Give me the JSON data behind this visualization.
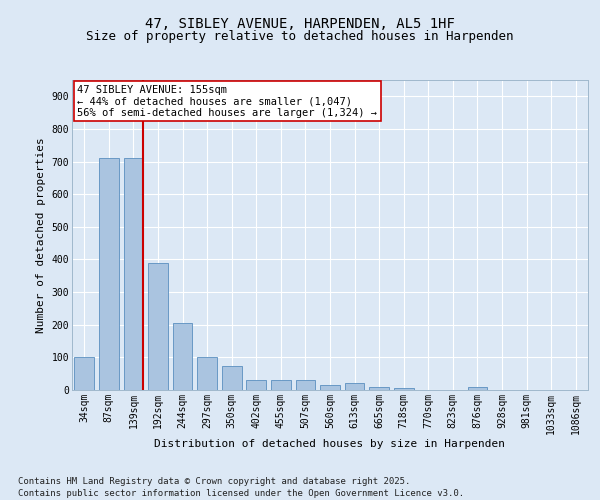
{
  "title": "47, SIBLEY AVENUE, HARPENDEN, AL5 1HF",
  "subtitle": "Size of property relative to detached houses in Harpenden",
  "xlabel": "Distribution of detached houses by size in Harpenden",
  "ylabel": "Number of detached properties",
  "categories": [
    "34sqm",
    "87sqm",
    "139sqm",
    "192sqm",
    "244sqm",
    "297sqm",
    "350sqm",
    "402sqm",
    "455sqm",
    "507sqm",
    "560sqm",
    "613sqm",
    "665sqm",
    "718sqm",
    "770sqm",
    "823sqm",
    "876sqm",
    "928sqm",
    "981sqm",
    "1033sqm",
    "1086sqm"
  ],
  "values": [
    100,
    710,
    710,
    390,
    205,
    100,
    75,
    30,
    32,
    32,
    15,
    20,
    8,
    7,
    0,
    0,
    8,
    0,
    0,
    0,
    0
  ],
  "bar_color": "#aac4e0",
  "bar_edge_color": "#5a8fc0",
  "vline_x_index": 2,
  "vline_color": "#cc0000",
  "annotation_text": "47 SIBLEY AVENUE: 155sqm\n← 44% of detached houses are smaller (1,047)\n56% of semi-detached houses are larger (1,324) →",
  "annotation_box_color": "#ffffff",
  "annotation_box_edge": "#cc0000",
  "ylim": [
    0,
    950
  ],
  "yticks": [
    0,
    100,
    200,
    300,
    400,
    500,
    600,
    700,
    800,
    900
  ],
  "background_color": "#dce8f5",
  "grid_color": "#ffffff",
  "footer": "Contains HM Land Registry data © Crown copyright and database right 2025.\nContains public sector information licensed under the Open Government Licence v3.0.",
  "title_fontsize": 10,
  "subtitle_fontsize": 9,
  "axis_label_fontsize": 8,
  "tick_fontsize": 7,
  "annotation_fontsize": 7.5,
  "footer_fontsize": 6.5
}
